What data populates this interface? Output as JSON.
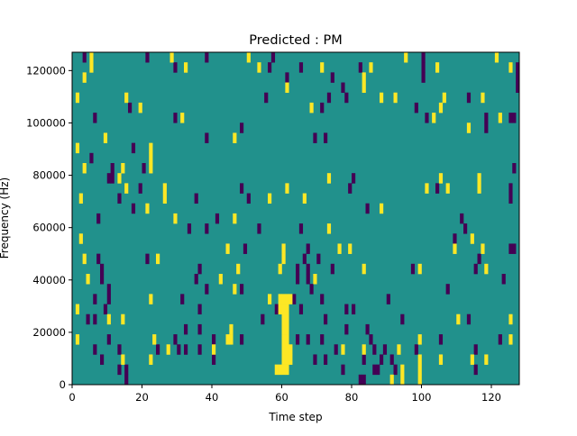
{
  "chart_data": {
    "type": "heatmap",
    "title": "Predicted : PM",
    "xlabel": "Time step",
    "ylabel": "Frequency (Hz)",
    "xlim": [
      0,
      128
    ],
    "ylim": [
      0,
      127000
    ],
    "x_ticks": [
      0,
      20,
      40,
      60,
      80,
      100,
      120
    ],
    "y_ticks": [
      0,
      20000,
      40000,
      60000,
      80000,
      100000,
      120000
    ],
    "x_tick_labels": [
      "0",
      "20",
      "40",
      "60",
      "80",
      "100",
      "120"
    ],
    "y_tick_labels": [
      "0",
      "20000",
      "40000",
      "60000",
      "80000",
      "100000",
      "120000"
    ],
    "time_steps": 128,
    "frequency_bins": 33,
    "colormap": "viridis",
    "colors": {
      "low": "#440154",
      "mid": "#21918c",
      "high": "#fde725"
    },
    "background_value": "mid",
    "cells_note_format": "[time_step, frequency_bin]",
    "high": [
      [
        5,
        32
      ],
      [
        28,
        32
      ],
      [
        50,
        32
      ],
      [
        95,
        32
      ],
      [
        121,
        32
      ],
      [
        5,
        31
      ],
      [
        32,
        31
      ],
      [
        53,
        31
      ],
      [
        71,
        31
      ],
      [
        85,
        31
      ],
      [
        104,
        31
      ],
      [
        125,
        31
      ],
      [
        3,
        30
      ],
      [
        83,
        30
      ],
      [
        83,
        29
      ],
      [
        61,
        29
      ],
      [
        1,
        28
      ],
      [
        15,
        28
      ],
      [
        88,
        28
      ],
      [
        92,
        28
      ],
      [
        106,
        28
      ],
      [
        117,
        28
      ],
      [
        19,
        27
      ],
      [
        68,
        27
      ],
      [
        105,
        27
      ],
      [
        31,
        26
      ],
      [
        103,
        26
      ],
      [
        122,
        26
      ],
      [
        113,
        25
      ],
      [
        9,
        24
      ],
      [
        46,
        24
      ],
      [
        1,
        23
      ],
      [
        22,
        23
      ],
      [
        22,
        22
      ],
      [
        3,
        21
      ],
      [
        14,
        21
      ],
      [
        22,
        21
      ],
      [
        13,
        20
      ],
      [
        73,
        20
      ],
      [
        105,
        20
      ],
      [
        116,
        20
      ],
      [
        15,
        19
      ],
      [
        26,
        19
      ],
      [
        61,
        19
      ],
      [
        101,
        19
      ],
      [
        107,
        19
      ],
      [
        116,
        19
      ],
      [
        2,
        18
      ],
      [
        26,
        18
      ],
      [
        56,
        18
      ],
      [
        66,
        18
      ],
      [
        21,
        17
      ],
      [
        88,
        17
      ],
      [
        29,
        16
      ],
      [
        46,
        16
      ],
      [
        73,
        15
      ],
      [
        2,
        14
      ],
      [
        114,
        14
      ],
      [
        44,
        13
      ],
      [
        60,
        13
      ],
      [
        76,
        13
      ],
      [
        79,
        13
      ],
      [
        109,
        13
      ],
      [
        117,
        13
      ],
      [
        3,
        12
      ],
      [
        24,
        12
      ],
      [
        60,
        12
      ],
      [
        47,
        11
      ],
      [
        59,
        11
      ],
      [
        83,
        11
      ],
      [
        99,
        11
      ],
      [
        118,
        11
      ],
      [
        4,
        10
      ],
      [
        42,
        10
      ],
      [
        69,
        10
      ],
      [
        46,
        9
      ],
      [
        22,
        8
      ],
      [
        56,
        8
      ],
      [
        1,
        7
      ],
      [
        10,
        6
      ],
      [
        14,
        6
      ],
      [
        110,
        6
      ],
      [
        125,
        6
      ],
      [
        45,
        5
      ],
      [
        1,
        4
      ],
      [
        23,
        4
      ],
      [
        44,
        4
      ],
      [
        45,
        4
      ],
      [
        99,
        4
      ],
      [
        125,
        4
      ],
      [
        27,
        3
      ],
      [
        40,
        3
      ],
      [
        77,
        3
      ],
      [
        83,
        3
      ],
      [
        93,
        3
      ],
      [
        14,
        2
      ],
      [
        22,
        2
      ],
      [
        99,
        2
      ],
      [
        105,
        2
      ],
      [
        114,
        2
      ],
      [
        118,
        2
      ],
      [
        94,
        1
      ],
      [
        99,
        1
      ],
      [
        91,
        0
      ],
      [
        94,
        0
      ],
      [
        99,
        0
      ],
      [
        60,
        1
      ],
      [
        60,
        2
      ],
      [
        60,
        3
      ],
      [
        60,
        4
      ],
      [
        60,
        5
      ],
      [
        60,
        6
      ],
      [
        60,
        7
      ],
      [
        60,
        8
      ],
      [
        61,
        1
      ],
      [
        61,
        2
      ],
      [
        61,
        3
      ],
      [
        61,
        4
      ],
      [
        61,
        5
      ],
      [
        61,
        6
      ],
      [
        61,
        7
      ],
      [
        61,
        8
      ],
      [
        59,
        1
      ],
      [
        62,
        2
      ],
      [
        62,
        3
      ],
      [
        59,
        8
      ],
      [
        62,
        8
      ],
      [
        59,
        7
      ],
      [
        58,
        1
      ]
    ],
    "low": [
      [
        3,
        32
      ],
      [
        21,
        32
      ],
      [
        38,
        32
      ],
      [
        57,
        32
      ],
      [
        100,
        32
      ],
      [
        29,
        31
      ],
      [
        56,
        31
      ],
      [
        65,
        31
      ],
      [
        82,
        31
      ],
      [
        100,
        31
      ],
      [
        127,
        31
      ],
      [
        61,
        30
      ],
      [
        74,
        30
      ],
      [
        100,
        30
      ],
      [
        127,
        30
      ],
      [
        77,
        29
      ],
      [
        127,
        29
      ],
      [
        55,
        28
      ],
      [
        73,
        28
      ],
      [
        78,
        28
      ],
      [
        113,
        28
      ],
      [
        16,
        27
      ],
      [
        71,
        27
      ],
      [
        98,
        27
      ],
      [
        6,
        26
      ],
      [
        29,
        26
      ],
      [
        101,
        26
      ],
      [
        118,
        26
      ],
      [
        125,
        26
      ],
      [
        126,
        26
      ],
      [
        48,
        25
      ],
      [
        118,
        25
      ],
      [
        38,
        24
      ],
      [
        69,
        24
      ],
      [
        72,
        24
      ],
      [
        17,
        23
      ],
      [
        5,
        22
      ],
      [
        11,
        21
      ],
      [
        20,
        21
      ],
      [
        126,
        21
      ],
      [
        10,
        20
      ],
      [
        11,
        20
      ],
      [
        80,
        20
      ],
      [
        19,
        19
      ],
      [
        48,
        19
      ],
      [
        79,
        19
      ],
      [
        104,
        19
      ],
      [
        125,
        19
      ],
      [
        13,
        18
      ],
      [
        35,
        18
      ],
      [
        50,
        18
      ],
      [
        125,
        18
      ],
      [
        17,
        17
      ],
      [
        84,
        17
      ],
      [
        7,
        16
      ],
      [
        41,
        16
      ],
      [
        111,
        16
      ],
      [
        33,
        15
      ],
      [
        38,
        15
      ],
      [
        53,
        15
      ],
      [
        65,
        15
      ],
      [
        112,
        15
      ],
      [
        109,
        14
      ],
      [
        49,
        13
      ],
      [
        67,
        13
      ],
      [
        125,
        13
      ],
      [
        126,
        13
      ],
      [
        7,
        12
      ],
      [
        21,
        12
      ],
      [
        66,
        12
      ],
      [
        70,
        12
      ],
      [
        116,
        12
      ],
      [
        8,
        11
      ],
      [
        36,
        11
      ],
      [
        64,
        11
      ],
      [
        67,
        11
      ],
      [
        74,
        11
      ],
      [
        97,
        11
      ],
      [
        115,
        11
      ],
      [
        8,
        10
      ],
      [
        35,
        10
      ],
      [
        64,
        10
      ],
      [
        67,
        10
      ],
      [
        123,
        10
      ],
      [
        10,
        9
      ],
      [
        38,
        9
      ],
      [
        48,
        9
      ],
      [
        68,
        9
      ],
      [
        107,
        9
      ],
      [
        6,
        8
      ],
      [
        10,
        8
      ],
      [
        31,
        8
      ],
      [
        63,
        8
      ],
      [
        71,
        8
      ],
      [
        90,
        8
      ],
      [
        9,
        7
      ],
      [
        36,
        7
      ],
      [
        58,
        7
      ],
      [
        65,
        7
      ],
      [
        78,
        7
      ],
      [
        80,
        7
      ],
      [
        4,
        6
      ],
      [
        6,
        6
      ],
      [
        54,
        6
      ],
      [
        72,
        6
      ],
      [
        94,
        6
      ],
      [
        113,
        6
      ],
      [
        32,
        5
      ],
      [
        36,
        5
      ],
      [
        78,
        5
      ],
      [
        84,
        5
      ],
      [
        10,
        4
      ],
      [
        29,
        4
      ],
      [
        40,
        4
      ],
      [
        48,
        4
      ],
      [
        64,
        4
      ],
      [
        67,
        4
      ],
      [
        71,
        4
      ],
      [
        85,
        4
      ],
      [
        105,
        4
      ],
      [
        122,
        4
      ],
      [
        6,
        3
      ],
      [
        13,
        3
      ],
      [
        24,
        3
      ],
      [
        30,
        3
      ],
      [
        32,
        3
      ],
      [
        36,
        3
      ],
      [
        75,
        3
      ],
      [
        86,
        3
      ],
      [
        89,
        3
      ],
      [
        98,
        3
      ],
      [
        115,
        3
      ],
      [
        8,
        2
      ],
      [
        40,
        2
      ],
      [
        69,
        2
      ],
      [
        72,
        2
      ],
      [
        83,
        2
      ],
      [
        88,
        2
      ],
      [
        91,
        2
      ],
      [
        13,
        1
      ],
      [
        15,
        1
      ],
      [
        77,
        1
      ],
      [
        86,
        1
      ],
      [
        87,
        1
      ],
      [
        92,
        1
      ],
      [
        115,
        1
      ],
      [
        15,
        0
      ],
      [
        82,
        0
      ],
      [
        83,
        0
      ]
    ]
  }
}
